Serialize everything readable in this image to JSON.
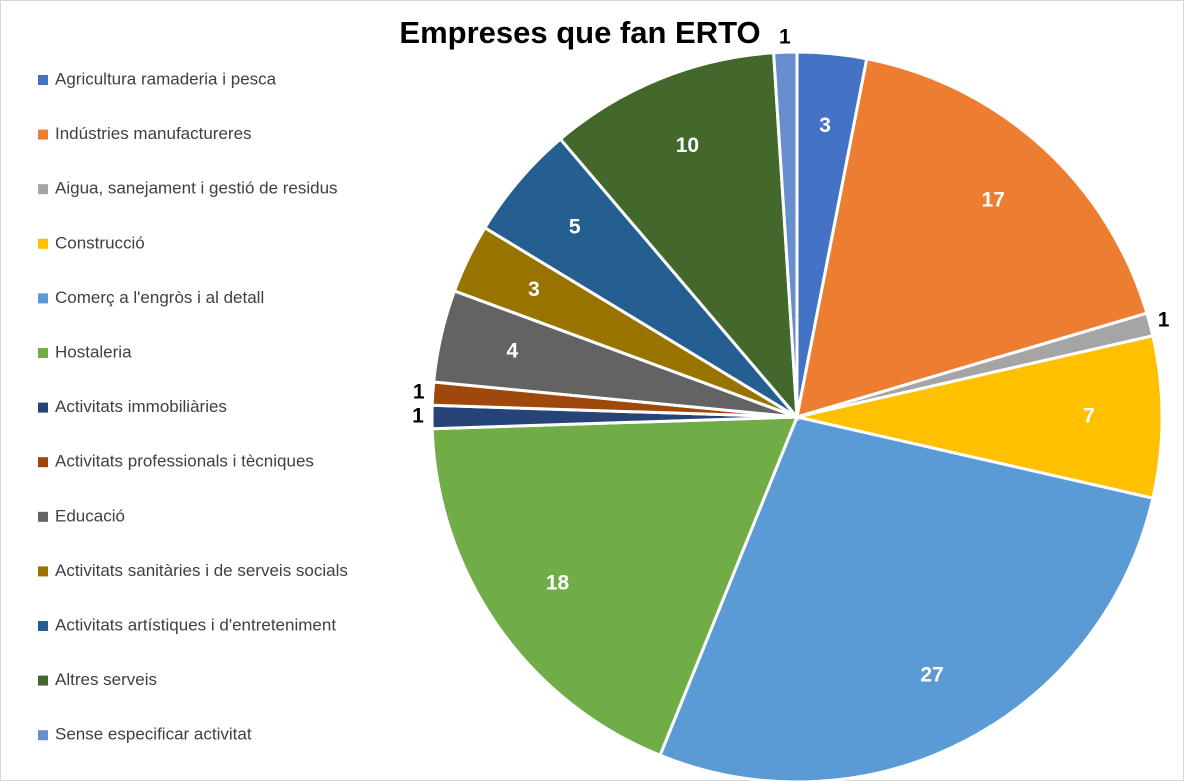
{
  "chart_data": {
    "type": "pie",
    "title": "Empreses que fan ERTO",
    "categories": [
      "Agricultura ramaderia i pesca",
      "Indústries manufactureres",
      "Aigua, sanejament i gestió de residus",
      "Construcció",
      "Comerç a l'engròs i al detall",
      "Hostaleria",
      "Activitats immobiliàries",
      "Activitats professionals i tècniques",
      "Educació",
      "Activitats sanitàries i de serveis socials",
      "Activitats artístiques i d'entreteniment",
      "Altres serveis",
      "Sense especificar activitat"
    ],
    "values": [
      3,
      17,
      1,
      7,
      27,
      18,
      1,
      1,
      4,
      3,
      5,
      10,
      1
    ],
    "colors": [
      "#4472c4",
      "#ed7d31",
      "#a5a5a5",
      "#ffc000",
      "#5b9bd5",
      "#70ad47",
      "#264478",
      "#9e480e",
      "#636363",
      "#997300",
      "#255e91",
      "#43682b",
      "#698ed0"
    ],
    "legend": "left"
  }
}
